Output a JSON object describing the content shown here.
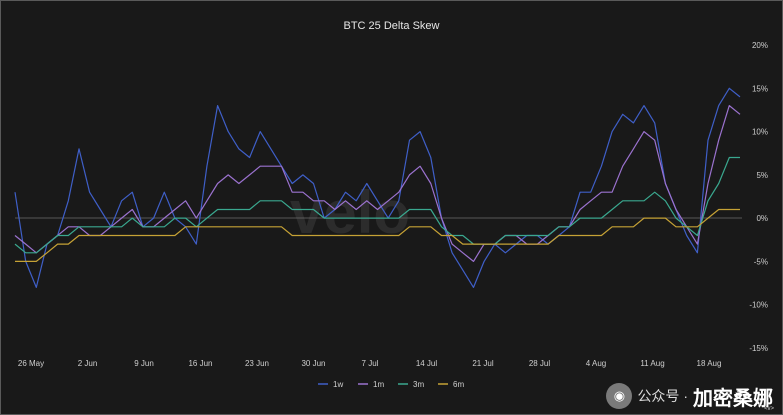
{
  "chart_data": {
    "type": "line",
    "title": "BTC 25 Delta Skew",
    "watermark": "velo",
    "x_labels": [
      "26 May",
      "2 Jun",
      "9 Jun",
      "16 Jun",
      "23 Jun",
      "30 Jun",
      "7 Jul",
      "14 Jul",
      "21 Jul",
      "28 Jul",
      "4 Aug",
      "11 Aug",
      "18 Aug"
    ],
    "y_ticks": [
      "20%",
      "15%",
      "10%",
      "5%",
      "0%",
      "-5%",
      "-10%",
      "-15%"
    ],
    "ylim": [
      -15,
      20
    ],
    "grid": false,
    "legend_position": "bottom-center",
    "series": [
      {
        "name": "1w",
        "color": "#3f5fc8",
        "values": [
          3,
          -5,
          -8,
          -3,
          -2,
          2,
          8,
          3,
          1,
          -1,
          2,
          3,
          -1,
          0,
          3,
          0,
          -1,
          -3,
          6,
          13,
          10,
          8,
          7,
          10,
          8,
          6,
          4,
          5,
          4,
          0,
          1,
          3,
          2,
          4,
          2,
          0,
          2,
          9,
          10,
          7,
          0,
          -4,
          -6,
          -8,
          -5,
          -3,
          -4,
          -3,
          -2,
          -2,
          -3,
          -2,
          -1,
          3,
          3,
          6,
          10,
          12,
          11,
          13,
          11,
          4,
          1,
          -2,
          -4,
          9,
          13,
          15,
          14
        ]
      },
      {
        "name": "1m",
        "color": "#9b72cf",
        "values": [
          -2,
          -3,
          -4,
          -3,
          -2,
          -1,
          -1,
          -2,
          -2,
          -1,
          0,
          1,
          -1,
          -1,
          0,
          1,
          2,
          0,
          2,
          4,
          5,
          4,
          5,
          6,
          6,
          6,
          3,
          3,
          2,
          2,
          1,
          2,
          1,
          2,
          1,
          2,
          3,
          5,
          6,
          4,
          0,
          -3,
          -4,
          -5,
          -3,
          -3,
          -2,
          -2,
          -3,
          -3,
          -2,
          -1,
          -1,
          1,
          2,
          3,
          3,
          6,
          8,
          10,
          9,
          4,
          1,
          -1,
          -3,
          4,
          9,
          13,
          12
        ]
      },
      {
        "name": "3m",
        "color": "#3aa88f",
        "values": [
          -3,
          -4,
          -4,
          -3,
          -2,
          -2,
          -1,
          -1,
          -1,
          -1,
          -1,
          0,
          -1,
          -1,
          -1,
          0,
          0,
          -1,
          0,
          1,
          1,
          1,
          1,
          2,
          2,
          2,
          1,
          1,
          1,
          0,
          0,
          0,
          0,
          0,
          0,
          0,
          0,
          1,
          1,
          1,
          -1,
          -2,
          -2,
          -3,
          -3,
          -3,
          -2,
          -2,
          -2,
          -2,
          -2,
          -1,
          -1,
          0,
          0,
          0,
          1,
          2,
          2,
          2,
          3,
          2,
          0,
          -1,
          -2,
          2,
          4,
          7,
          7
        ]
      },
      {
        "name": "6m",
        "color": "#c6a235",
        "values": [
          -5,
          -5,
          -5,
          -4,
          -3,
          -3,
          -2,
          -2,
          -2,
          -2,
          -2,
          -2,
          -2,
          -2,
          -2,
          -2,
          -1,
          -1,
          -1,
          -1,
          -1,
          -1,
          -1,
          -1,
          -1,
          -1,
          -2,
          -2,
          -2,
          -2,
          -2,
          -2,
          -2,
          -2,
          -2,
          -2,
          -2,
          -1,
          -1,
          -1,
          -2,
          -2,
          -3,
          -3,
          -3,
          -3,
          -3,
          -3,
          -3,
          -3,
          -3,
          -2,
          -2,
          -2,
          -2,
          -2,
          -1,
          -1,
          -1,
          0,
          0,
          0,
          -1,
          -1,
          -1,
          0,
          1,
          1,
          1
        ]
      }
    ]
  },
  "footer": {
    "wechat_label": "公众号 ·",
    "source": "加密桑娜",
    "small_mark": "<v>"
  }
}
